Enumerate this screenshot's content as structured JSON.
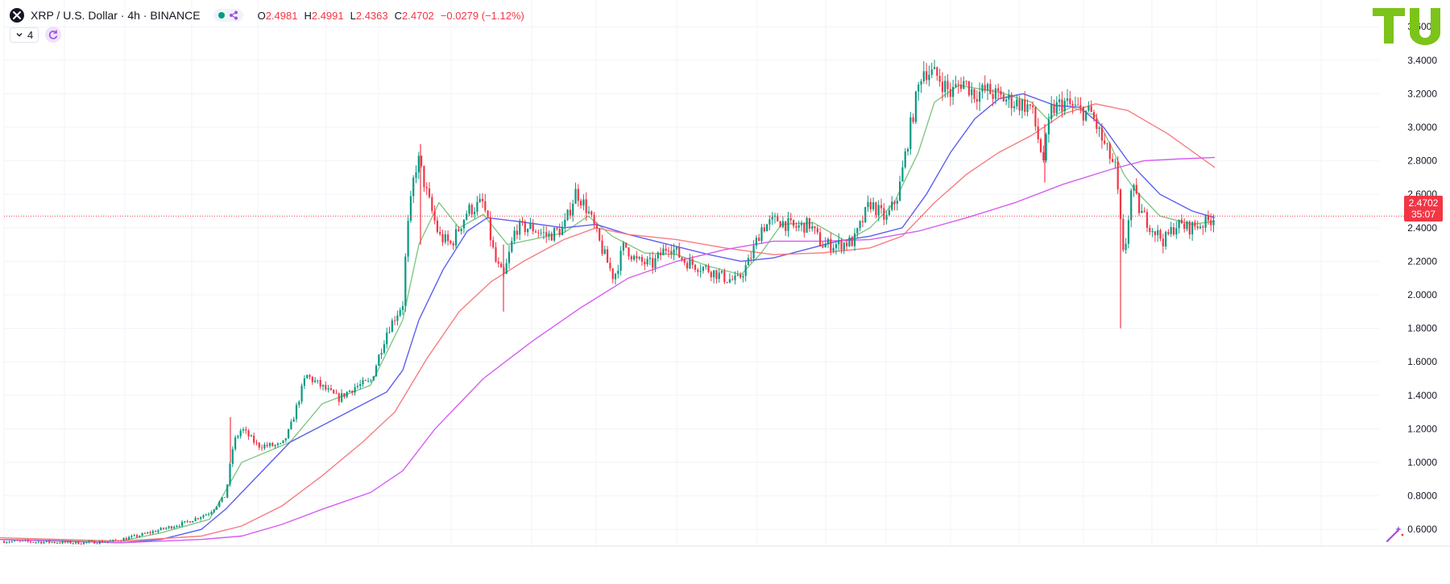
{
  "header": {
    "symbol_title": "XRP / U.S. Dollar · 4h · BINANCE",
    "ohlc": [
      {
        "key": "O",
        "value": "2.4981"
      },
      {
        "key": "H",
        "value": "2.4991"
      },
      {
        "key": "L",
        "value": "2.4363"
      },
      {
        "key": "C",
        "value": "2.4702"
      },
      {
        "key": "",
        "value": "−0.0279 (−1.12%)"
      }
    ],
    "indicator_count": "4",
    "logo_icon": "xrp-logo-icon",
    "status_color": "#089981"
  },
  "price_label": {
    "price": "2.4702",
    "countdown": "35:07",
    "color": "#f23645"
  },
  "colors": {
    "up": "#089981",
    "down": "#f23645",
    "ma_green": "#81c784",
    "ma_blue": "#5b5ef0",
    "ma_red": "#f77c80",
    "ma_purple": "#d65cf2",
    "brand": "#7cc31a"
  },
  "chart_data": {
    "type": "candlestick",
    "timeframe": "4h",
    "ylim": [
      0.5,
      3.6
    ],
    "y_ticks": [
      "0.6000",
      "0.8000",
      "1.0000",
      "1.2000",
      "1.4000",
      "1.6000",
      "1.8000",
      "2.0000",
      "2.2000",
      "2.4000",
      "2.6000",
      "2.8000",
      "3.0000",
      "3.2000",
      "3.4000",
      "3.6000"
    ],
    "current_price": 2.4702,
    "grid": true,
    "price_path": [
      [
        0,
        0.53
      ],
      [
        100,
        0.52
      ],
      [
        140,
        0.53
      ],
      [
        170,
        0.56
      ],
      [
        200,
        0.6
      ],
      [
        230,
        0.64
      ],
      [
        260,
        0.7
      ],
      [
        280,
        0.8
      ],
      [
        290,
        1.12
      ],
      [
        300,
        1.2
      ],
      [
        320,
        1.1
      ],
      [
        350,
        1.1
      ],
      [
        360,
        1.2
      ],
      [
        380,
        1.52
      ],
      [
        400,
        1.45
      ],
      [
        420,
        1.38
      ],
      [
        440,
        1.45
      ],
      [
        460,
        1.48
      ],
      [
        480,
        1.78
      ],
      [
        500,
        1.95
      ],
      [
        505,
        2.35
      ],
      [
        515,
        2.75
      ],
      [
        520,
        2.8
      ],
      [
        530,
        2.6
      ],
      [
        545,
        2.35
      ],
      [
        560,
        2.3
      ],
      [
        580,
        2.5
      ],
      [
        600,
        2.55
      ],
      [
        615,
        2.2
      ],
      [
        625,
        2.1
      ],
      [
        640,
        2.4
      ],
      [
        660,
        2.4
      ],
      [
        680,
        2.35
      ],
      [
        700,
        2.4
      ],
      [
        715,
        2.62
      ],
      [
        730,
        2.5
      ],
      [
        745,
        2.3
      ],
      [
        762,
        2.1
      ],
      [
        775,
        2.3
      ],
      [
        790,
        2.2
      ],
      [
        810,
        2.18
      ],
      [
        830,
        2.3
      ],
      [
        850,
        2.2
      ],
      [
        880,
        2.15
      ],
      [
        900,
        2.1
      ],
      [
        915,
        2.08
      ],
      [
        930,
        2.2
      ],
      [
        945,
        2.4
      ],
      [
        965,
        2.45
      ],
      [
        985,
        2.4
      ],
      [
        1005,
        2.42
      ],
      [
        1020,
        2.3
      ],
      [
        1040,
        2.3
      ],
      [
        1060,
        2.32
      ],
      [
        1080,
        2.55
      ],
      [
        1100,
        2.45
      ],
      [
        1115,
        2.6
      ],
      [
        1130,
        3.0
      ],
      [
        1145,
        3.35
      ],
      [
        1165,
        3.3
      ],
      [
        1180,
        3.2
      ],
      [
        1195,
        3.28
      ],
      [
        1210,
        3.2
      ],
      [
        1225,
        3.22
      ],
      [
        1240,
        3.18
      ],
      [
        1260,
        3.15
      ],
      [
        1280,
        3.12
      ],
      [
        1295,
        2.8
      ],
      [
        1305,
        3.1
      ],
      [
        1320,
        3.15
      ],
      [
        1340,
        3.1
      ],
      [
        1355,
        3.08
      ],
      [
        1370,
        2.9
      ],
      [
        1385,
        2.75
      ],
      [
        1395,
        2.2
      ],
      [
        1405,
        2.65
      ],
      [
        1415,
        2.5
      ],
      [
        1430,
        2.4
      ],
      [
        1445,
        2.32
      ],
      [
        1460,
        2.42
      ],
      [
        1475,
        2.4
      ],
      [
        1490,
        2.42
      ],
      [
        1500,
        2.44
      ],
      [
        1508,
        2.47
      ]
    ],
    "wicks": [
      {
        "x": 1391,
        "low": 1.8,
        "high": 2.5
      },
      {
        "x": 1297,
        "low": 2.67,
        "high": 3.02
      },
      {
        "x": 625,
        "low": 1.9,
        "high": 2.3
      },
      {
        "x": 522,
        "low": 2.3,
        "high": 2.9
      },
      {
        "x": 286,
        "low": 1.0,
        "high": 1.27
      }
    ],
    "series": [
      {
        "color": "#81c784",
        "points": [
          [
            0,
            0.54
          ],
          [
            150,
            0.53
          ],
          [
            200,
            0.58
          ],
          [
            260,
            0.66
          ],
          [
            300,
            1.0
          ],
          [
            360,
            1.12
          ],
          [
            400,
            1.35
          ],
          [
            460,
            1.46
          ],
          [
            500,
            1.85
          ],
          [
            520,
            2.3
          ],
          [
            545,
            2.55
          ],
          [
            570,
            2.4
          ],
          [
            600,
            2.48
          ],
          [
            630,
            2.3
          ],
          [
            660,
            2.33
          ],
          [
            700,
            2.37
          ],
          [
            730,
            2.47
          ],
          [
            760,
            2.35
          ],
          [
            800,
            2.25
          ],
          [
            840,
            2.24
          ],
          [
            880,
            2.17
          ],
          [
            920,
            2.12
          ],
          [
            945,
            2.25
          ],
          [
            970,
            2.42
          ],
          [
            1010,
            2.43
          ],
          [
            1050,
            2.32
          ],
          [
            1080,
            2.4
          ],
          [
            1110,
            2.55
          ],
          [
            1140,
            2.85
          ],
          [
            1160,
            3.15
          ],
          [
            1190,
            3.25
          ],
          [
            1240,
            3.21
          ],
          [
            1280,
            3.15
          ],
          [
            1300,
            3.05
          ],
          [
            1330,
            3.12
          ],
          [
            1360,
            3.07
          ],
          [
            1380,
            2.88
          ],
          [
            1395,
            2.72
          ],
          [
            1410,
            2.62
          ],
          [
            1440,
            2.47
          ],
          [
            1480,
            2.42
          ],
          [
            1508,
            2.44
          ]
        ]
      },
      {
        "color": "#5b5ef0",
        "points": [
          [
            0,
            0.54
          ],
          [
            150,
            0.52
          ],
          [
            200,
            0.54
          ],
          [
            250,
            0.6
          ],
          [
            280,
            0.72
          ],
          [
            320,
            0.92
          ],
          [
            360,
            1.12
          ],
          [
            400,
            1.22
          ],
          [
            440,
            1.32
          ],
          [
            480,
            1.42
          ],
          [
            500,
            1.55
          ],
          [
            520,
            1.85
          ],
          [
            550,
            2.15
          ],
          [
            580,
            2.38
          ],
          [
            605,
            2.46
          ],
          [
            640,
            2.44
          ],
          [
            700,
            2.4
          ],
          [
            740,
            2.42
          ],
          [
            780,
            2.36
          ],
          [
            830,
            2.3
          ],
          [
            880,
            2.24
          ],
          [
            920,
            2.2
          ],
          [
            960,
            2.22
          ],
          [
            1000,
            2.27
          ],
          [
            1040,
            2.32
          ],
          [
            1080,
            2.35
          ],
          [
            1120,
            2.4
          ],
          [
            1150,
            2.6
          ],
          [
            1180,
            2.85
          ],
          [
            1210,
            3.05
          ],
          [
            1240,
            3.17
          ],
          [
            1270,
            3.2
          ],
          [
            1310,
            3.13
          ],
          [
            1340,
            3.12
          ],
          [
            1370,
            3.0
          ],
          [
            1400,
            2.8
          ],
          [
            1440,
            2.6
          ],
          [
            1480,
            2.5
          ],
          [
            1508,
            2.46
          ]
        ]
      },
      {
        "color": "#f77c80",
        "points": [
          [
            0,
            0.55
          ],
          [
            150,
            0.53
          ],
          [
            250,
            0.56
          ],
          [
            300,
            0.62
          ],
          [
            350,
            0.74
          ],
          [
            400,
            0.92
          ],
          [
            450,
            1.12
          ],
          [
            490,
            1.3
          ],
          [
            530,
            1.62
          ],
          [
            570,
            1.9
          ],
          [
            610,
            2.08
          ],
          [
            650,
            2.2
          ],
          [
            700,
            2.33
          ],
          [
            740,
            2.4
          ],
          [
            780,
            2.36
          ],
          [
            840,
            2.33
          ],
          [
            900,
            2.28
          ],
          [
            960,
            2.24
          ],
          [
            1020,
            2.25
          ],
          [
            1080,
            2.28
          ],
          [
            1120,
            2.35
          ],
          [
            1160,
            2.55
          ],
          [
            1200,
            2.72
          ],
          [
            1240,
            2.85
          ],
          [
            1280,
            2.95
          ],
          [
            1320,
            3.08
          ],
          [
            1360,
            3.14
          ],
          [
            1400,
            3.1
          ],
          [
            1450,
            2.96
          ],
          [
            1508,
            2.76
          ]
        ]
      },
      {
        "color": "#d65cf2",
        "points": [
          [
            0,
            0.54
          ],
          [
            150,
            0.52
          ],
          [
            250,
            0.54
          ],
          [
            300,
            0.56
          ],
          [
            350,
            0.63
          ],
          [
            400,
            0.72
          ],
          [
            460,
            0.82
          ],
          [
            500,
            0.95
          ],
          [
            540,
            1.2
          ],
          [
            600,
            1.5
          ],
          [
            660,
            1.72
          ],
          [
            720,
            1.92
          ],
          [
            780,
            2.1
          ],
          [
            840,
            2.2
          ],
          [
            900,
            2.27
          ],
          [
            960,
            2.32
          ],
          [
            1020,
            2.32
          ],
          [
            1080,
            2.33
          ],
          [
            1140,
            2.38
          ],
          [
            1200,
            2.46
          ],
          [
            1260,
            2.55
          ],
          [
            1320,
            2.66
          ],
          [
            1380,
            2.75
          ],
          [
            1420,
            2.8
          ],
          [
            1460,
            2.81
          ],
          [
            1508,
            2.82
          ]
        ]
      }
    ]
  }
}
